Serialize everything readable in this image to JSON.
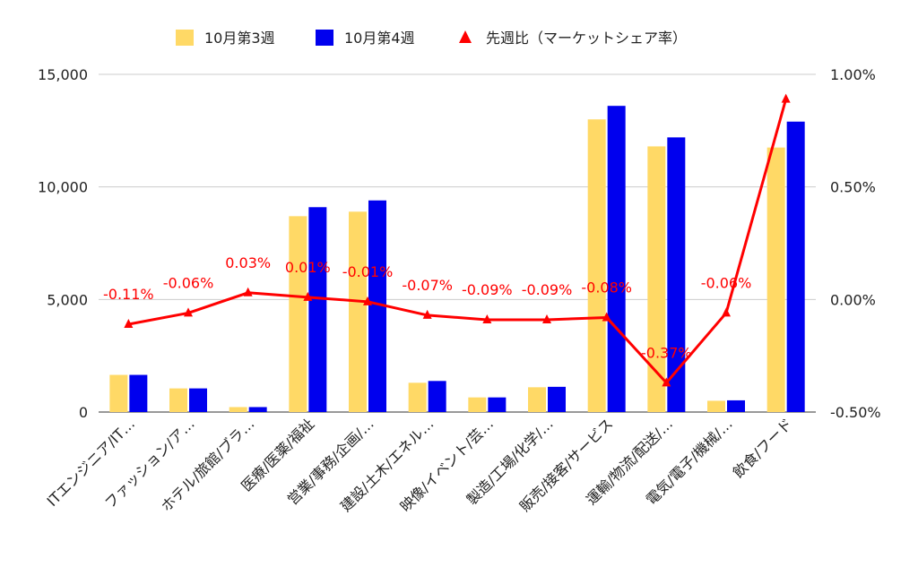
{
  "chart_data": {
    "type": "bar",
    "categories": [
      "ITエンジニア/IT…",
      "ファッション/ア…",
      "ホテル/旅館/ブラ…",
      "医療/医薬/福祉",
      "営業/事務/企画/…",
      "建設/土木/エネル…",
      "映像/イベント/芸…",
      "製造/工場/化学/…",
      "販売/接客/サービス",
      "運輸/物流/配送/…",
      "電気/電子/機械/…",
      "飲食/フード"
    ],
    "series": [
      {
        "name": "10月第3週",
        "kind": "bar",
        "axis": "left",
        "color": "#ffd966",
        "values": [
          1650,
          1050,
          220,
          8700,
          8900,
          1300,
          650,
          1100,
          13000,
          11800,
          500,
          11750
        ]
      },
      {
        "name": "10月第4週",
        "kind": "bar",
        "axis": "left",
        "color": "#0000ee",
        "values": [
          1650,
          1050,
          220,
          9100,
          9400,
          1380,
          650,
          1120,
          13600,
          12200,
          520,
          12900
        ]
      },
      {
        "name": "先週比（マーケットシェア率）",
        "kind": "line",
        "axis": "right",
        "color": "#ff0000",
        "values": [
          -0.11,
          -0.06,
          0.03,
          0.01,
          -0.01,
          -0.07,
          -0.09,
          -0.09,
          -0.08,
          -0.37,
          -0.06,
          0.89
        ],
        "data_labels": [
          "-0.11%",
          "-0.06%",
          "0.03%",
          "0.01%",
          "-0.01%",
          "-0.07%",
          "-0.09%",
          "-0.09%",
          "-0.08%",
          "-0.37%",
          "-0.06%",
          ""
        ]
      }
    ],
    "y_left": {
      "ylim": [
        0,
        15000
      ],
      "ticks": [
        "0",
        "5,000",
        "10,000",
        "15,000"
      ],
      "tick_values": [
        0,
        5000,
        10000,
        15000
      ]
    },
    "y_right": {
      "ylim": [
        -0.5,
        1.0
      ],
      "ticks": [
        "-0.50%",
        "0.00%",
        "0.50%",
        "1.00%"
      ],
      "tick_values": [
        -0.5,
        0,
        0.5,
        1.0
      ]
    },
    "grid": true,
    "legend_position": "top-center",
    "title": "",
    "xlabel": "",
    "ylabel": ""
  }
}
